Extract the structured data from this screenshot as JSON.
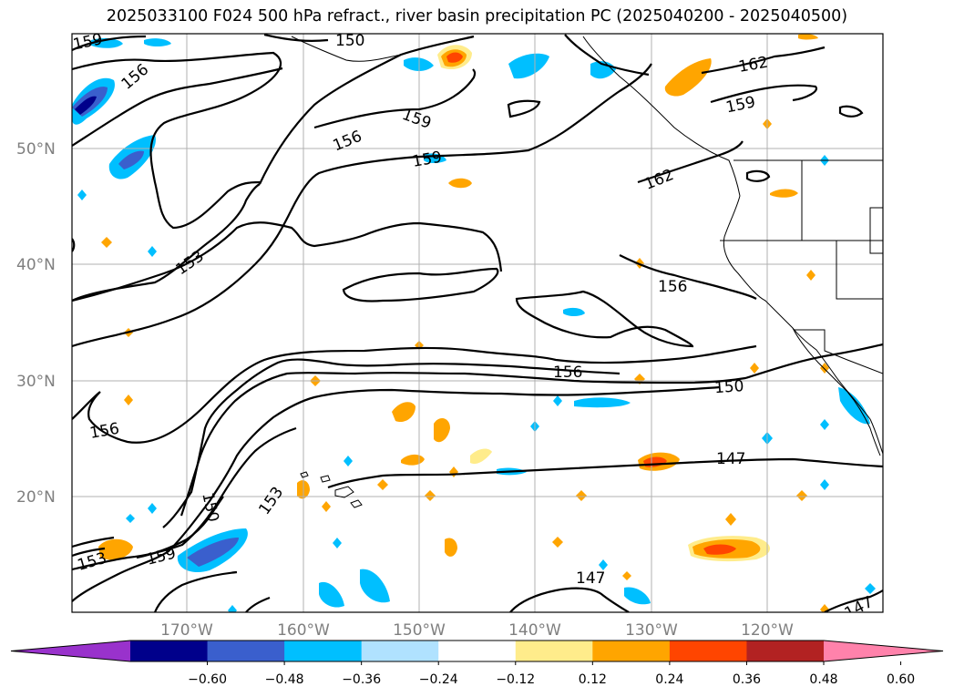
{
  "title": "2025033100 F024 500 hPa refract., river basin precipitation PC (2025040200 - 2025040500)",
  "lat_labels": [
    "50°N",
    "40°N",
    "30°N",
    "20°N"
  ],
  "lon_labels": [
    "170°W",
    "160°W",
    "150°W",
    "140°W",
    "130°W",
    "120°W"
  ],
  "contour_labels": [
    {
      "text": "159"
    },
    {
      "text": "150"
    },
    {
      "text": "156"
    },
    {
      "text": "159"
    },
    {
      "text": "156"
    },
    {
      "text": "159"
    },
    {
      "text": "162"
    },
    {
      "text": "159"
    },
    {
      "text": "162"
    },
    {
      "text": "153"
    },
    {
      "text": "156"
    },
    {
      "text": "156"
    },
    {
      "text": "150"
    },
    {
      "text": "156"
    },
    {
      "text": "147"
    },
    {
      "text": "150"
    },
    {
      "text": "153"
    },
    {
      "text": "153"
    },
    {
      "text": "159"
    },
    {
      "text": "147"
    },
    {
      "text": "147"
    }
  ],
  "colorbar": {
    "ticks": [
      "−0.60",
      "−0.48",
      "−0.36",
      "−0.24",
      "−0.12",
      "0.12",
      "0.24",
      "0.36",
      "0.48",
      "0.60"
    ],
    "colors": [
      "#9932cc",
      "#00008b",
      "#3a5fcd",
      "#00bfff",
      "#b0e2ff",
      "#ffffff",
      "#ffec8b",
      "#ffa500",
      "#ff4500",
      "#b22222",
      "#ff82ab"
    ]
  }
}
